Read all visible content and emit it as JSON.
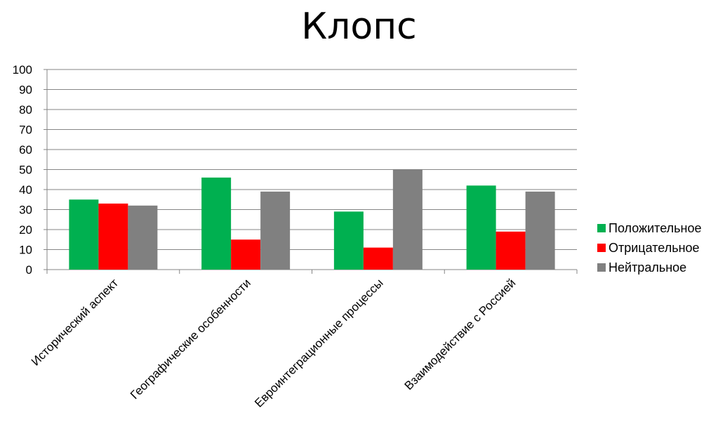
{
  "chart_data": {
    "type": "bar",
    "title": "Клопс",
    "xlabel": "",
    "ylabel": "",
    "ylim": [
      0,
      100
    ],
    "yticks": [
      0,
      10,
      20,
      30,
      40,
      50,
      60,
      70,
      80,
      90,
      100
    ],
    "grid": true,
    "legend_position": "right",
    "categories": [
      "Исторический аспект",
      "Географические особенности",
      "Евроинтеграционные процессы",
      "Взаимодействие с Россией"
    ],
    "series": [
      {
        "name": "Положительное",
        "color": "#00B050",
        "values": [
          35,
          46,
          29,
          42
        ]
      },
      {
        "name": "Отрицательное",
        "color": "#FF0000",
        "values": [
          33,
          15,
          11,
          19
        ]
      },
      {
        "name": "Нейтральное",
        "color": "#808080",
        "values": [
          32,
          39,
          50,
          39
        ]
      }
    ]
  }
}
